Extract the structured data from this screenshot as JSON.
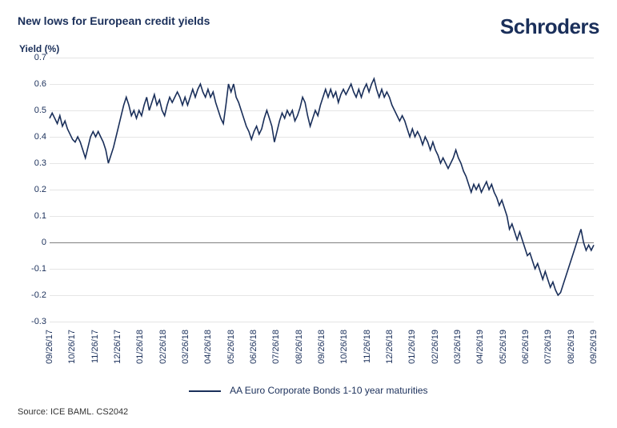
{
  "header": {
    "title": "New lows for European credit yields",
    "brand": "Schroders"
  },
  "chart": {
    "type": "line",
    "ylabel": "Yield (%)",
    "ylim": [
      -0.3,
      0.7
    ],
    "ytick_step": 0.1,
    "yticks": [
      -0.3,
      -0.2,
      -0.1,
      0,
      0.1,
      0.2,
      0.3,
      0.4,
      0.5,
      0.6,
      0.7
    ],
    "xticks": [
      "09/26/17",
      "10/26/17",
      "11/26/17",
      "12/26/17",
      "01/26/18",
      "02/26/18",
      "03/26/18",
      "04/26/18",
      "05/26/18",
      "06/26/18",
      "07/26/18",
      "08/26/18",
      "09/26/18",
      "10/26/18",
      "11/26/18",
      "12/26/18",
      "01/26/19",
      "02/26/19",
      "03/26/19",
      "04/26/19",
      "05/26/19",
      "06/26/19",
      "07/26/19",
      "08/26/19",
      "09/26/19"
    ],
    "grid_color": "#e5e5e5",
    "axis_color": "#808080",
    "background_color": "#ffffff",
    "tick_fontsize": 11,
    "label_fontsize": 12,
    "title_fontsize": 14,
    "title_color": "#1a2f5a",
    "tick_color": "#1a2f5a",
    "series": [
      {
        "name": "AA Euro Corporate Bonds 1-10 year maturities",
        "color": "#1a2f5a",
        "line_width": 1.6,
        "values": [
          0.47,
          0.49,
          0.47,
          0.45,
          0.48,
          0.44,
          0.46,
          0.43,
          0.41,
          0.39,
          0.38,
          0.4,
          0.38,
          0.35,
          0.32,
          0.36,
          0.4,
          0.42,
          0.4,
          0.42,
          0.4,
          0.38,
          0.35,
          0.3,
          0.33,
          0.36,
          0.4,
          0.44,
          0.48,
          0.52,
          0.55,
          0.52,
          0.48,
          0.5,
          0.47,
          0.5,
          0.48,
          0.52,
          0.55,
          0.5,
          0.53,
          0.56,
          0.52,
          0.54,
          0.5,
          0.48,
          0.52,
          0.55,
          0.53,
          0.55,
          0.57,
          0.55,
          0.52,
          0.55,
          0.52,
          0.55,
          0.58,
          0.55,
          0.58,
          0.6,
          0.57,
          0.55,
          0.58,
          0.55,
          0.57,
          0.53,
          0.5,
          0.47,
          0.45,
          0.52,
          0.6,
          0.57,
          0.6,
          0.55,
          0.53,
          0.5,
          0.47,
          0.44,
          0.42,
          0.39,
          0.42,
          0.44,
          0.41,
          0.43,
          0.47,
          0.5,
          0.47,
          0.44,
          0.38,
          0.42,
          0.46,
          0.49,
          0.47,
          0.5,
          0.48,
          0.5,
          0.46,
          0.48,
          0.51,
          0.55,
          0.53,
          0.48,
          0.44,
          0.47,
          0.5,
          0.48,
          0.52,
          0.55,
          0.58,
          0.55,
          0.58,
          0.55,
          0.57,
          0.53,
          0.56,
          0.58,
          0.56,
          0.58,
          0.6,
          0.57,
          0.55,
          0.58,
          0.55,
          0.58,
          0.6,
          0.57,
          0.6,
          0.62,
          0.58,
          0.55,
          0.58,
          0.55,
          0.57,
          0.55,
          0.52,
          0.5,
          0.48,
          0.46,
          0.48,
          0.46,
          0.43,
          0.4,
          0.43,
          0.4,
          0.42,
          0.4,
          0.37,
          0.4,
          0.38,
          0.35,
          0.38,
          0.35,
          0.33,
          0.3,
          0.32,
          0.3,
          0.28,
          0.3,
          0.32,
          0.35,
          0.32,
          0.3,
          0.27,
          0.25,
          0.22,
          0.19,
          0.22,
          0.2,
          0.22,
          0.19,
          0.21,
          0.23,
          0.2,
          0.22,
          0.19,
          0.17,
          0.14,
          0.16,
          0.13,
          0.1,
          0.05,
          0.07,
          0.04,
          0.01,
          0.04,
          0.01,
          -0.02,
          -0.05,
          -0.04,
          -0.07,
          -0.1,
          -0.08,
          -0.11,
          -0.14,
          -0.11,
          -0.14,
          -0.17,
          -0.15,
          -0.18,
          -0.2,
          -0.19,
          -0.16,
          -0.13,
          -0.1,
          -0.07,
          -0.04,
          -0.01,
          0.02,
          0.05,
          0.0,
          -0.03,
          -0.01,
          -0.03,
          -0.01
        ]
      }
    ],
    "legend_position": "bottom-center"
  },
  "source": "Source: ICE BAML. CS2042"
}
